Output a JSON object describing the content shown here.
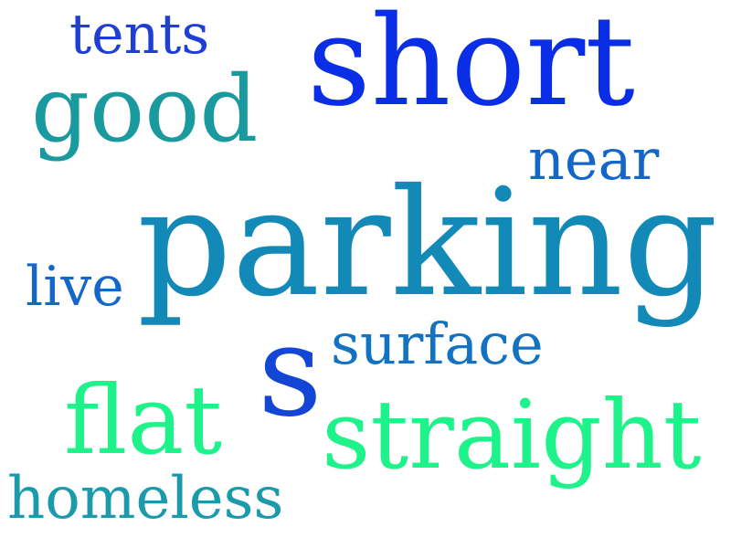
{
  "word_cloud": {
    "words": [
      {
        "text": "tents",
        "color": "#1f3fd4"
      },
      {
        "text": "short",
        "color": "#0a2ee6"
      },
      {
        "text": "good",
        "color": "#1a9a9f"
      },
      {
        "text": "near",
        "color": "#1466c8"
      },
      {
        "text": "parking",
        "color": "#1389b8"
      },
      {
        "text": "live",
        "color": "#1466c8"
      },
      {
        "text": "surface",
        "color": "#1472c2"
      },
      {
        "text": "s",
        "color": "#1446d6"
      },
      {
        "text": "flat",
        "color": "#1ef28a"
      },
      {
        "text": "straight",
        "color": "#1ef28a"
      },
      {
        "text": "homeless",
        "color": "#1a9aab"
      }
    ]
  }
}
